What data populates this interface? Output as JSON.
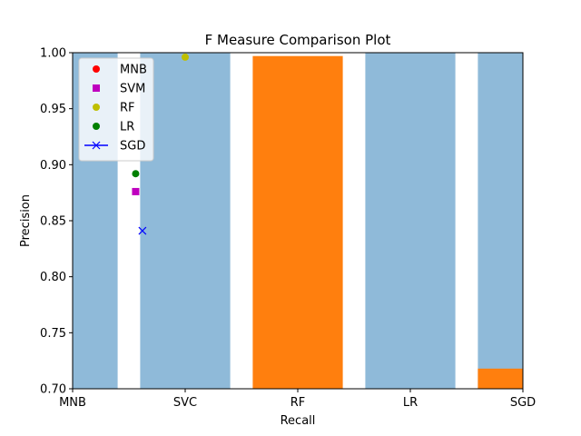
{
  "chart_data": {
    "type": "bar",
    "title": "F Measure Comparison Plot",
    "xlabel": "Recall",
    "ylabel": "Precision",
    "xlim": [
      0,
      4
    ],
    "ylim": [
      0.7,
      1.0
    ],
    "x_ticks": [
      {
        "value": 0,
        "label": "MNB"
      },
      {
        "value": 1,
        "label": "SVC"
      },
      {
        "value": 2,
        "label": "RF"
      },
      {
        "value": 3,
        "label": "LR"
      },
      {
        "value": 4,
        "label": "SGD"
      }
    ],
    "y_ticks": [
      {
        "value": 0.7,
        "label": "0.70"
      },
      {
        "value": 0.75,
        "label": "0.75"
      },
      {
        "value": 0.8,
        "label": "0.80"
      },
      {
        "value": 0.85,
        "label": "0.85"
      },
      {
        "value": 0.9,
        "label": "0.90"
      },
      {
        "value": 0.95,
        "label": "0.95"
      },
      {
        "value": 1.0,
        "label": "1.00"
      }
    ],
    "bar_groups": [
      {
        "color": "#8fbad9",
        "bars": [
          {
            "x0": 0.0,
            "x1": 0.4,
            "value": 1.0
          },
          {
            "x0": 0.6,
            "x1": 1.4,
            "value": 1.0
          },
          {
            "x0": 2.6,
            "x1": 3.4,
            "value": 1.0
          },
          {
            "x0": 3.6,
            "x1": 4.0,
            "value": 1.0
          }
        ]
      },
      {
        "color": "#ff7f0e",
        "bars": [
          {
            "x0": 1.6,
            "x1": 2.4,
            "value": 0.997
          },
          {
            "x0": 3.6,
            "x1": 4.0,
            "value": 0.718
          }
        ]
      }
    ],
    "series": [
      {
        "name": "MNB",
        "marker": "circle",
        "color": "#ff0000",
        "points": []
      },
      {
        "name": "SVM",
        "marker": "square",
        "color": "#bf00bf",
        "points": [
          {
            "x": 0.56,
            "y": 0.876
          }
        ]
      },
      {
        "name": "RF",
        "marker": "circle",
        "color": "#bfbf00",
        "points": [
          {
            "x": 1.0,
            "y": 0.996
          }
        ]
      },
      {
        "name": "LR",
        "marker": "circle",
        "color": "#008000",
        "points": [
          {
            "x": 0.56,
            "y": 0.892
          }
        ]
      },
      {
        "name": "SGD",
        "marker": "x-line",
        "color": "#0000ff",
        "points": [
          {
            "x": 0.62,
            "y": 0.841
          }
        ]
      }
    ],
    "legend": "upper-left",
    "grid": false
  }
}
